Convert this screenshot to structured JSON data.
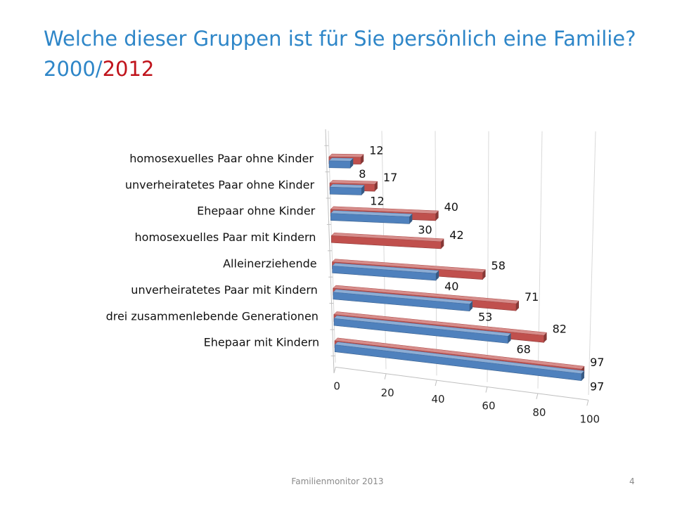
{
  "slide": {
    "title_main": "Welche dieser Gruppen ist für Sie persönlich eine Familie? 2000/",
    "title_highlight": "2012",
    "footer": "Familienmonitor 2013",
    "page_number": "4"
  },
  "colors": {
    "title": "#2e86c8",
    "title_highlight": "#c0141c",
    "series_2000": "#4f81bd",
    "series_2012": "#c0504d"
  },
  "chart_data": {
    "type": "bar",
    "orientation": "horizontal",
    "style": "3d-perspective",
    "categories": [
      "homosexuelles Paar ohne Kinder",
      "unverheiratetes Paar ohne Kinder",
      "Ehepaar ohne Kinder",
      "homosexuelles Paar mit Kindern",
      "Alleinerziehende",
      "unverheiratetes Paar mit Kindern",
      "drei zusammenlebende Generationen",
      "Ehepaar mit Kindern"
    ],
    "series": [
      {
        "key": "2000",
        "color": "#4f81bd",
        "values": [
          8,
          12,
          30,
          null,
          40,
          53,
          68,
          97
        ]
      },
      {
        "key": "2012",
        "color": "#c0504d",
        "values": [
          12,
          17,
          40,
          42,
          58,
          71,
          82,
          97
        ]
      }
    ],
    "xlim": [
      0,
      100
    ],
    "xticks": [
      0,
      20,
      40,
      60,
      80,
      100
    ],
    "grid": true,
    "legend": "none"
  }
}
